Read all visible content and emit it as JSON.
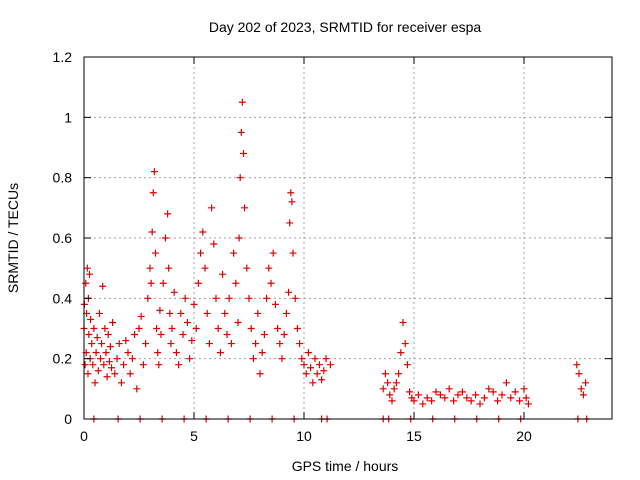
{
  "chart_data": {
    "type": "scatter",
    "title": "Day 202 of 2023, SRMTID for receiver espa",
    "xlabel": "GPS time / hours",
    "ylabel": "SRMTID / TECUs",
    "xlim": [
      0,
      24
    ],
    "ylim": [
      0,
      1.2
    ],
    "xticks": [
      0,
      5,
      10,
      15,
      20
    ],
    "xtick_labels": [
      "0",
      "5",
      "10",
      "15",
      "20"
    ],
    "yticks": [
      0,
      0.2,
      0.4,
      0.6,
      0.8,
      1.0,
      1.2
    ],
    "ytick_labels": [
      "0",
      "0.2",
      "0.4",
      "0.6",
      "0.8",
      "1",
      "1.2"
    ],
    "grid": true,
    "marker": "plus",
    "color": "#e00000",
    "series": [
      {
        "name": "SRMTID",
        "x": [
          0.0,
          0.02,
          0.05,
          0.08,
          0.1,
          0.12,
          0.15,
          0.18,
          0.2,
          0.22,
          0.25,
          0.28,
          0.3,
          0.35,
          0.4,
          0.45,
          0.5,
          0.55,
          0.6,
          0.65,
          0.7,
          0.75,
          0.8,
          0.85,
          0.9,
          0.95,
          1.0,
          1.05,
          1.1,
          1.15,
          1.2,
          1.25,
          1.3,
          1.4,
          1.5,
          1.6,
          1.7,
          1.8,
          1.9,
          2.0,
          2.1,
          2.2,
          2.3,
          2.4,
          2.5,
          2.6,
          2.7,
          2.8,
          2.9,
          3.0,
          3.05,
          3.1,
          3.15,
          3.2,
          3.25,
          3.3,
          3.35,
          3.4,
          3.45,
          3.5,
          3.6,
          3.7,
          3.8,
          3.85,
          3.9,
          3.95,
          4.0,
          4.1,
          4.2,
          4.3,
          4.4,
          4.5,
          4.6,
          4.7,
          4.8,
          4.9,
          5.0,
          5.1,
          5.2,
          5.3,
          5.4,
          5.5,
          5.6,
          5.7,
          5.8,
          5.9,
          6.0,
          6.1,
          6.2,
          6.3,
          6.4,
          6.5,
          6.6,
          6.7,
          6.8,
          6.9,
          7.0,
          7.05,
          7.1,
          7.15,
          7.2,
          7.25,
          7.3,
          7.4,
          7.5,
          7.6,
          7.7,
          7.8,
          7.9,
          8.0,
          8.1,
          8.2,
          8.3,
          8.4,
          8.5,
          8.6,
          8.7,
          8.8,
          8.9,
          9.0,
          9.1,
          9.2,
          9.3,
          9.35,
          9.4,
          9.45,
          9.5,
          9.6,
          9.7,
          9.8,
          9.9,
          10.0,
          10.1,
          10.2,
          10.3,
          10.4,
          10.5,
          10.6,
          10.7,
          10.8,
          10.9,
          11.0,
          11.2,
          13.6,
          13.7,
          13.8,
          13.9,
          14.0,
          14.1,
          14.2,
          14.3,
          14.4,
          14.5,
          14.6,
          14.7,
          14.8,
          14.9,
          15.0,
          15.2,
          15.4,
          15.6,
          15.8,
          16.0,
          16.2,
          16.4,
          16.6,
          16.8,
          17.0,
          17.2,
          17.4,
          17.6,
          17.8,
          18.0,
          18.2,
          18.4,
          18.6,
          18.8,
          19.0,
          19.2,
          19.4,
          19.6,
          19.8,
          20.0,
          20.1,
          20.2,
          22.4,
          22.5,
          22.6,
          22.7,
          22.8
        ],
        "y": [
          0.3,
          0.38,
          0.18,
          0.45,
          0.22,
          0.35,
          0.5,
          0.15,
          0.4,
          0.28,
          0.48,
          0.2,
          0.33,
          0.25,
          0.18,
          0.3,
          0.12,
          0.22,
          0.27,
          0.16,
          0.35,
          0.2,
          0.25,
          0.44,
          0.18,
          0.3,
          0.22,
          0.14,
          0.28,
          0.19,
          0.24,
          0.17,
          0.32,
          0.15,
          0.2,
          0.25,
          0.12,
          0.18,
          0.26,
          0.22,
          0.15,
          0.2,
          0.28,
          0.1,
          0.3,
          0.34,
          0.18,
          0.25,
          0.4,
          0.5,
          0.45,
          0.62,
          0.75,
          0.82,
          0.55,
          0.3,
          0.22,
          0.18,
          0.36,
          0.28,
          0.45,
          0.6,
          0.68,
          0.5,
          0.35,
          0.25,
          0.3,
          0.42,
          0.22,
          0.18,
          0.35,
          0.28,
          0.4,
          0.32,
          0.2,
          0.26,
          0.38,
          0.3,
          0.45,
          0.55,
          0.62,
          0.5,
          0.35,
          0.25,
          0.7,
          0.58,
          0.4,
          0.3,
          0.22,
          0.48,
          0.35,
          0.28,
          0.4,
          0.25,
          0.55,
          0.45,
          0.32,
          0.6,
          0.8,
          0.95,
          1.05,
          0.88,
          0.7,
          0.5,
          0.4,
          0.3,
          0.2,
          0.25,
          0.35,
          0.15,
          0.22,
          0.28,
          0.4,
          0.5,
          0.45,
          0.55,
          0.38,
          0.3,
          0.25,
          0.2,
          0.28,
          0.35,
          0.42,
          0.65,
          0.75,
          0.72,
          0.55,
          0.4,
          0.3,
          0.25,
          0.2,
          0.18,
          0.15,
          0.22,
          0.17,
          0.12,
          0.2,
          0.15,
          0.18,
          0.13,
          0.16,
          0.2,
          0.18,
          0.1,
          0.15,
          0.12,
          0.08,
          0.06,
          0.1,
          0.12,
          0.15,
          0.22,
          0.32,
          0.25,
          0.18,
          0.09,
          0.07,
          0.06,
          0.08,
          0.05,
          0.07,
          0.06,
          0.09,
          0.08,
          0.07,
          0.1,
          0.06,
          0.08,
          0.09,
          0.07,
          0.06,
          0.08,
          0.05,
          0.07,
          0.1,
          0.09,
          0.06,
          0.08,
          0.12,
          0.07,
          0.09,
          0.06,
          0.1,
          0.07,
          0.05,
          0.18,
          0.15,
          0.1,
          0.08,
          0.12
        ],
        "zero_x": [
          0.45,
          1.55,
          2.55,
          3.55,
          4.55,
          5.55,
          6.55,
          7.55,
          8.55,
          9.55,
          10.8,
          11.05,
          13.6,
          13.85,
          14.85,
          15.85,
          16.85,
          17.85,
          18.85,
          19.85,
          22.45,
          22.85
        ]
      }
    ]
  }
}
